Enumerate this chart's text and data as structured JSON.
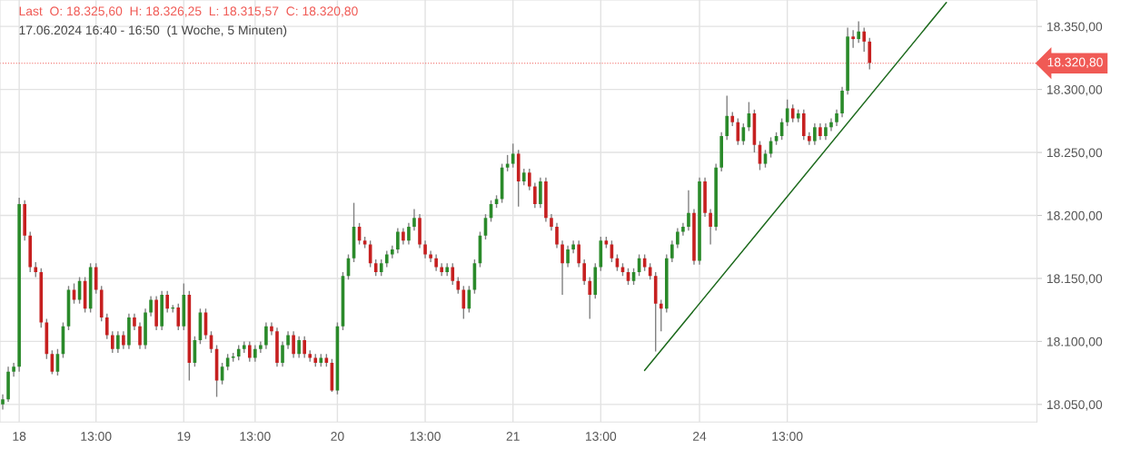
{
  "chart_data": {
    "type": "candlestick",
    "title": "Last  O: 18.325,60  H: 18.326,25  L: 18.315,57  C: 18.320,80",
    "subtitle": "17.06.2024 16:40 - 16:50  (1 Woche, 5 Minuten)",
    "categories": [
      null,
      null,
      null,
      "18",
      null,
      null,
      null,
      null,
      null,
      null,
      null,
      null,
      null,
      null,
      null,
      null,
      null,
      "13:00",
      null,
      null,
      null,
      null,
      null,
      null,
      null,
      null,
      null,
      null,
      null,
      null,
      null,
      null,
      null,
      "19",
      null,
      null,
      null,
      null,
      null,
      null,
      null,
      null,
      null,
      null,
      null,
      null,
      "13:00",
      null,
      null,
      null,
      null,
      null,
      null,
      null,
      null,
      null,
      null,
      null,
      null,
      null,
      null,
      "20",
      null,
      null,
      null,
      null,
      null,
      null,
      null,
      null,
      null,
      null,
      null,
      null,
      null,
      null,
      null,
      "13:00",
      null,
      null,
      null,
      null,
      null,
      null,
      null,
      null,
      null,
      null,
      null,
      null,
      null,
      null,
      null,
      "21",
      null,
      null,
      null,
      null,
      null,
      null,
      null,
      null,
      null,
      null,
      null,
      null,
      null,
      null,
      null,
      "13:00",
      null,
      null,
      null,
      null,
      null,
      null,
      null,
      null,
      null,
      null,
      null,
      null,
      null,
      null,
      null,
      null,
      null,
      "24",
      null,
      null,
      null,
      null,
      null,
      null,
      null,
      null,
      null,
      null,
      null,
      null,
      null,
      null,
      null,
      "13:00",
      null,
      null,
      null,
      null,
      null,
      null,
      null,
      null,
      null,
      null,
      null,
      null,
      null,
      null,
      null,
      null,
      null,
      null,
      null,
      null,
      null,
      null,
      null,
      null,
      null,
      null,
      null,
      null,
      null,
      null,
      null,
      null,
      null,
      null,
      null,
      null,
      null,
      null,
      null,
      null,
      null,
      null,
      null,
      null,
      null
    ],
    "ohlc": [
      [
        18050,
        18058,
        18046,
        18054
      ],
      [
        18054,
        18080,
        18052,
        18076
      ],
      [
        18076,
        18083,
        18072,
        18080
      ],
      [
        18080,
        18214,
        18076,
        18209
      ],
      [
        18209,
        18212,
        18180,
        18184
      ],
      [
        18184,
        18187,
        18155,
        18159
      ],
      [
        18159,
        18163,
        18151,
        18155
      ],
      [
        18155,
        18158,
        18111,
        18115
      ],
      [
        18115,
        18118,
        18086,
        18090
      ],
      [
        18090,
        18093,
        18074,
        18076
      ],
      [
        18076,
        18094,
        18073,
        18090
      ],
      [
        18090,
        18115,
        18087,
        18112
      ],
      [
        18112,
        18144,
        18109,
        18141
      ],
      [
        18141,
        18146,
        18130,
        18133
      ],
      [
        18133,
        18151,
        18130,
        18148
      ],
      [
        18148,
        18151,
        18123,
        18126
      ],
      [
        18126,
        18162,
        18123,
        18159
      ],
      [
        18159,
        18162,
        18138,
        18141
      ],
      [
        18141,
        18144,
        18116,
        18119
      ],
      [
        18119,
        18122,
        18102,
        18105
      ],
      [
        18105,
        18108,
        18091,
        18094
      ],
      [
        18094,
        18108,
        18091,
        18105
      ],
      [
        18105,
        18108,
        18094,
        18097
      ],
      [
        18097,
        18122,
        18094,
        18119
      ],
      [
        18119,
        18122,
        18109,
        18112
      ],
      [
        18112,
        18115,
        18094,
        18097
      ],
      [
        18097,
        18126,
        18094,
        18123
      ],
      [
        18123,
        18136,
        18120,
        18133
      ],
      [
        18133,
        18136,
        18109,
        18112
      ],
      [
        18112,
        18140,
        18109,
        18137
      ],
      [
        18137,
        18140,
        18123,
        18126
      ],
      [
        18126,
        18129,
        18123,
        18127
      ],
      [
        18127,
        18130,
        18109,
        18112
      ],
      [
        18112,
        18146,
        18109,
        18137
      ],
      [
        18137,
        18140,
        18069,
        18083
      ],
      [
        18083,
        18104,
        18080,
        18101
      ],
      [
        18101,
        18126,
        18098,
        18123
      ],
      [
        18123,
        18126,
        18102,
        18105
      ],
      [
        18105,
        18108,
        18091,
        18094
      ],
      [
        18094,
        18097,
        18056,
        18069
      ],
      [
        18069,
        18083,
        18066,
        18080
      ],
      [
        18080,
        18090,
        18077,
        18087
      ],
      [
        18087,
        18091,
        18084,
        18088
      ],
      [
        18088,
        18097,
        18085,
        18094
      ],
      [
        18094,
        18100,
        18091,
        18097
      ],
      [
        18097,
        18100,
        18084,
        18087
      ],
      [
        18087,
        18097,
        18084,
        18094
      ],
      [
        18094,
        18100,
        18091,
        18097
      ],
      [
        18097,
        18115,
        18094,
        18112
      ],
      [
        18112,
        18115,
        18105,
        18108
      ],
      [
        18108,
        18111,
        18080,
        18083
      ],
      [
        18083,
        18100,
        18080,
        18097
      ],
      [
        18097,
        18108,
        18094,
        18105
      ],
      [
        18105,
        18108,
        18087,
        18090
      ],
      [
        18090,
        18104,
        18087,
        18101
      ],
      [
        18101,
        18104,
        18087,
        18090
      ],
      [
        18090,
        18093,
        18084,
        18087
      ],
      [
        18087,
        18090,
        18080,
        18083
      ],
      [
        18083,
        18090,
        18080,
        18087
      ],
      [
        18087,
        18090,
        18080,
        18083
      ],
      [
        18083,
        18086,
        18060,
        18061
      ],
      [
        18061,
        18115,
        18058,
        18112
      ],
      [
        18112,
        18155,
        18109,
        18152
      ],
      [
        18152,
        18169,
        18149,
        18166
      ],
      [
        18166,
        18210,
        18163,
        18191
      ],
      [
        18191,
        18194,
        18177,
        18180
      ],
      [
        18180,
        18183,
        18174,
        18177
      ],
      [
        18177,
        18180,
        18159,
        18162
      ],
      [
        18162,
        18165,
        18152,
        18155
      ],
      [
        18155,
        18165,
        18152,
        18162
      ],
      [
        18162,
        18172,
        18159,
        18169
      ],
      [
        18169,
        18176,
        18166,
        18173
      ],
      [
        18173,
        18190,
        18170,
        18187
      ],
      [
        18187,
        18190,
        18177,
        18180
      ],
      [
        18180,
        18194,
        18177,
        18191
      ],
      [
        18191,
        18205,
        18188,
        18198
      ],
      [
        18198,
        18201,
        18174,
        18177
      ],
      [
        18177,
        18180,
        18166,
        18169
      ],
      [
        18169,
        18172,
        18163,
        18166
      ],
      [
        18166,
        18169,
        18156,
        18159
      ],
      [
        18159,
        18162,
        18152,
        18155
      ],
      [
        18155,
        18162,
        18152,
        18159
      ],
      [
        18159,
        18162,
        18145,
        18148
      ],
      [
        18148,
        18151,
        18138,
        18141
      ],
      [
        18141,
        18144,
        18118,
        18126
      ],
      [
        18126,
        18144,
        18123,
        18141
      ],
      [
        18141,
        18165,
        18138,
        18162
      ],
      [
        18162,
        18187,
        18159,
        18184
      ],
      [
        18184,
        18201,
        18181,
        18198
      ],
      [
        18198,
        18212,
        18195,
        18209
      ],
      [
        18209,
        18216,
        18206,
        18213
      ],
      [
        18213,
        18241,
        18210,
        18238
      ],
      [
        18238,
        18248,
        18235,
        18241
      ],
      [
        18241,
        18257,
        18238,
        18249
      ],
      [
        18249,
        18252,
        18207,
        18227
      ],
      [
        18227,
        18237,
        18224,
        18234
      ],
      [
        18234,
        18237,
        18220,
        18223
      ],
      [
        18223,
        18226,
        18206,
        18209
      ],
      [
        18209,
        18230,
        18206,
        18227
      ],
      [
        18227,
        18230,
        18195,
        18198
      ],
      [
        18198,
        18201,
        18188,
        18191
      ],
      [
        18191,
        18194,
        18174,
        18177
      ],
      [
        18177,
        18180,
        18137,
        18162
      ],
      [
        18162,
        18176,
        18159,
        18173
      ],
      [
        18173,
        18180,
        18170,
        18177
      ],
      [
        18177,
        18180,
        18159,
        18162
      ],
      [
        18162,
        18165,
        18145,
        18148
      ],
      [
        18148,
        18151,
        18118,
        18137
      ],
      [
        18137,
        18162,
        18134,
        18159
      ],
      [
        18159,
        18183,
        18156,
        18180
      ],
      [
        18180,
        18183,
        18174,
        18177
      ],
      [
        18177,
        18180,
        18163,
        18166
      ],
      [
        18166,
        18169,
        18156,
        18159
      ],
      [
        18159,
        18162,
        18152,
        18155
      ],
      [
        18155,
        18158,
        18145,
        18148
      ],
      [
        18148,
        18158,
        18145,
        18155
      ],
      [
        18155,
        18169,
        18152,
        18166
      ],
      [
        18166,
        18169,
        18156,
        18159
      ],
      [
        18159,
        18162,
        18149,
        18152
      ],
      [
        18152,
        18155,
        18092,
        18130
      ],
      [
        18130,
        18133,
        18108,
        18126
      ],
      [
        18126,
        18169,
        18123,
        18166
      ],
      [
        18166,
        18180,
        18163,
        18177
      ],
      [
        18177,
        18190,
        18174,
        18187
      ],
      [
        18187,
        18194,
        18184,
        18191
      ],
      [
        18191,
        18220,
        18188,
        18202
      ],
      [
        18202,
        18205,
        18161,
        18164
      ],
      [
        18164,
        18230,
        18161,
        18227
      ],
      [
        18227,
        18230,
        18199,
        18202
      ],
      [
        18202,
        18205,
        18177,
        18191
      ],
      [
        18191,
        18241,
        18188,
        18238
      ],
      [
        18238,
        18266,
        18235,
        18263
      ],
      [
        18263,
        18295,
        18260,
        18279
      ],
      [
        18279,
        18282,
        18271,
        18274
      ],
      [
        18274,
        18277,
        18256,
        18259
      ],
      [
        18259,
        18273,
        18256,
        18270
      ],
      [
        18270,
        18290,
        18267,
        18281
      ],
      [
        18281,
        18284,
        18250,
        18256
      ],
      [
        18256,
        18259,
        18236,
        18241
      ],
      [
        18241,
        18252,
        18238,
        18249
      ],
      [
        18249,
        18262,
        18246,
        18259
      ],
      [
        18259,
        18266,
        18256,
        18263
      ],
      [
        18263,
        18277,
        18260,
        18274
      ],
      [
        18274,
        18292,
        18271,
        18285
      ],
      [
        18285,
        18288,
        18274,
        18277
      ],
      [
        18277,
        18284,
        18274,
        18281
      ],
      [
        18281,
        18284,
        18260,
        18263
      ],
      [
        18263,
        18266,
        18256,
        18259
      ],
      [
        18259,
        18273,
        18256,
        18270
      ],
      [
        18270,
        18273,
        18260,
        18263
      ],
      [
        18263,
        18273,
        18260,
        18270
      ],
      [
        18270,
        18277,
        18267,
        18274
      ],
      [
        18274,
        18284,
        18271,
        18281
      ],
      [
        18281,
        18302,
        18278,
        18299
      ],
      [
        18299,
        18349,
        18296,
        18342
      ],
      [
        18342,
        18347,
        18333,
        18340
      ],
      [
        18340,
        18354,
        18337,
        18346
      ],
      [
        18346,
        18349,
        18330,
        18338
      ],
      [
        18338,
        18341,
        18316,
        18321
      ],
      null,
      null,
      null,
      null,
      null,
      null,
      null,
      null,
      null,
      null,
      null,
      null,
      null,
      null,
      null,
      null,
      null,
      null,
      null,
      null,
      null,
      null,
      null,
      null,
      null,
      null,
      null,
      null,
      null,
      null
    ],
    "series": [
      {
        "type": "line",
        "values": [
          null,
          null,
          null,
          null,
          null,
          null,
          null,
          null,
          null,
          null,
          null,
          null,
          null,
          null,
          null,
          null,
          null,
          null,
          null,
          null,
          null,
          null,
          null,
          null,
          null,
          null,
          null,
          null,
          null,
          null,
          null,
          null,
          null,
          null,
          null,
          null,
          null,
          null,
          null,
          null,
          null,
          null,
          null,
          null,
          null,
          null,
          null,
          null,
          null,
          null,
          null,
          null,
          null,
          null,
          null,
          null,
          null,
          null,
          null,
          null,
          null,
          null,
          null,
          null,
          null,
          null,
          null,
          null,
          null,
          null,
          null,
          null,
          null,
          null,
          null,
          null,
          null,
          null,
          null,
          null,
          null,
          null,
          null,
          null,
          null,
          null,
          null,
          null,
          null,
          null,
          null,
          null,
          null,
          null,
          null,
          null,
          null,
          null,
          null,
          null,
          null,
          null,
          null,
          null,
          null,
          null,
          null,
          null,
          null,
          null,
          null,
          null,
          null,
          null,
          null,
          null,
          null,
          18077,
          null,
          null,
          null,
          null,
          null,
          null,
          null,
          null,
          null,
          null,
          null,
          null,
          null,
          null,
          null,
          null,
          null,
          null,
          null,
          null,
          null,
          null,
          null,
          null,
          null,
          null,
          null,
          null,
          null,
          null,
          null,
          null,
          null,
          null,
          null,
          null,
          null,
          null,
          null,
          null,
          null,
          null,
          null,
          null,
          null,
          null,
          null,
          null,
          null,
          null,
          null,
          null,
          null,
          null,
          18369,
          null,
          null,
          null,
          null,
          null,
          null,
          null,
          null,
          null,
          null,
          null,
          null,
          null,
          null,
          null,
          null
        ],
        "color": "#1e6b1e"
      }
    ],
    "ylim": [
      18036,
      18371
    ],
    "yticks": [
      {
        "value": 18050,
        "label": "18.050,00"
      },
      {
        "value": 18100,
        "label": "18.100,00"
      },
      {
        "value": 18150,
        "label": "18.150,00"
      },
      {
        "value": 18200,
        "label": "18.200,00"
      },
      {
        "value": 18250,
        "label": "18.250,00"
      },
      {
        "value": 18300,
        "label": "18.300,00"
      },
      {
        "value": 18350,
        "label": "18.350,00"
      }
    ],
    "ref_lines": [
      {
        "axis": "y",
        "value": 18320.8,
        "label": "18.320,80",
        "color": "#f05a55"
      }
    ],
    "grid": true
  }
}
